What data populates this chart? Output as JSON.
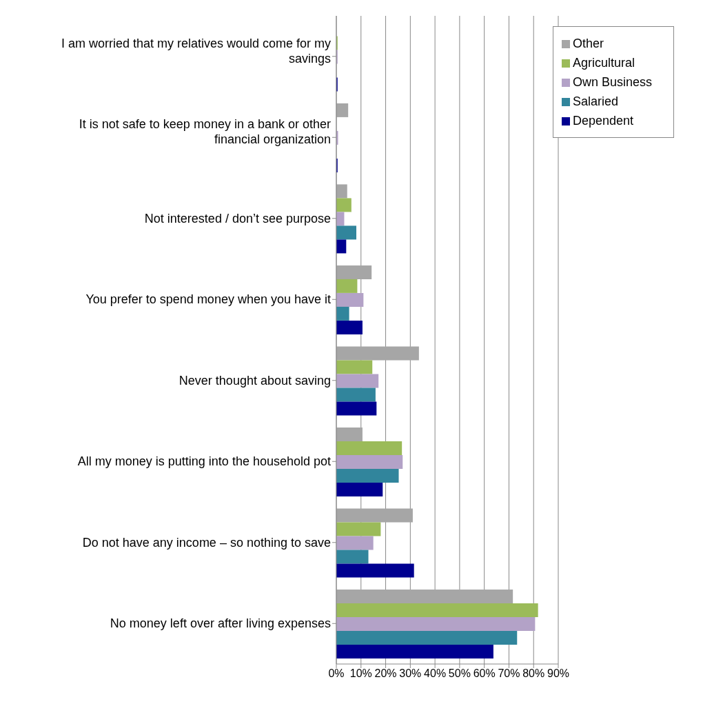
{
  "chart_data": {
    "type": "bar",
    "orientation": "horizontal",
    "categories": [
      "I am worried that my relatives would come for my savings",
      "It is not safe to keep money in a bank or other financial organization",
      "Not interested / don’t see purpose",
      "You prefer to spend money when you have it",
      "Never thought about saving",
      "All my money is putting into the household pot",
      "Do not have any income – so nothing to save",
      "No money left over after living expenses"
    ],
    "series": [
      {
        "name": "Other",
        "color": "#a6a6a6",
        "values": [
          0,
          4.8,
          4.4,
          14.3,
          33.5,
          10.6,
          31.0,
          71.6
        ]
      },
      {
        "name": "Agricultural",
        "color": "#9bbb59",
        "values": [
          0.5,
          0,
          6.1,
          8.5,
          14.6,
          26.6,
          18.0,
          81.8
        ]
      },
      {
        "name": "Own Business",
        "color": "#b3a2c7",
        "values": [
          0.5,
          0.7,
          3.2,
          11.0,
          17.1,
          26.9,
          15.0,
          80.6
        ]
      },
      {
        "name": "Salaried",
        "color": "#31859c",
        "values": [
          0,
          0,
          8.1,
          5.2,
          15.9,
          25.3,
          13.0,
          73.3
        ]
      },
      {
        "name": "Dependent",
        "color": "#000090",
        "values": [
          0.5,
          0.5,
          4.0,
          10.6,
          16.3,
          18.8,
          31.5,
          63.7
        ]
      }
    ],
    "xlim": [
      0,
      90
    ],
    "xticks": [
      {
        "value": 0,
        "label": "0%"
      },
      {
        "value": 10,
        "label": "10%"
      },
      {
        "value": 20,
        "label": "20%"
      },
      {
        "value": 30,
        "label": "30%"
      },
      {
        "value": 40,
        "label": "40%"
      },
      {
        "value": 50,
        "label": "50%"
      },
      {
        "value": 60,
        "label": "60%"
      },
      {
        "value": 70,
        "label": "70%"
      },
      {
        "value": 80,
        "label": "80%"
      },
      {
        "value": 90,
        "label": "90%"
      }
    ],
    "grid": "x",
    "legend": "top right"
  }
}
